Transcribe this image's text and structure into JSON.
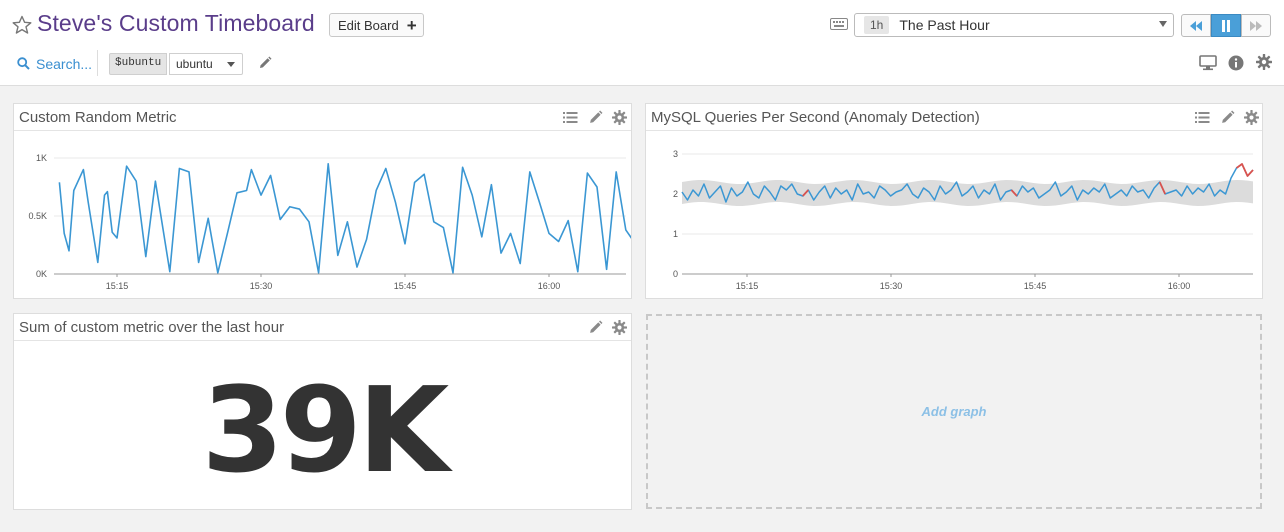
{
  "header": {
    "title": "Steve's Custom Timeboard",
    "edit_board_label": "Edit Board",
    "time_badge": "1h",
    "time_label": "The Past Hour"
  },
  "toolbar": {
    "search_placeholder": "Search...",
    "template_variable_name": "$ubuntu",
    "template_variable_value": "ubuntu"
  },
  "icons": [
    "star-icon",
    "plus-icon",
    "keyboard-icon",
    "rewind-icon",
    "pause-icon",
    "fast-forward-icon",
    "search-icon",
    "chevron-down-icon",
    "pencil-icon",
    "monitor-icon",
    "info-icon",
    "gear-icon",
    "list-icon"
  ],
  "colors": {
    "accent": "#4a9fd8",
    "title": "#5a3d8a",
    "series": "#3b97d3",
    "anomaly": "#d9534f",
    "band": "#dcdcdc"
  },
  "widgets": {
    "random": {
      "title": "Custom Random Metric"
    },
    "mysql": {
      "title": "MySQL Queries Per Second (Anomaly Detection)"
    },
    "sum": {
      "title": "Sum of custom metric over the last hour",
      "value": "39K"
    },
    "add_graph_label": "Add graph"
  },
  "chart_data": [
    {
      "type": "line",
      "xticks": [
        "15:15",
        "15:30",
        "15:45",
        "16:00"
      ],
      "yticks": [
        "0K",
        "0.5K",
        "1K"
      ],
      "ylim": [
        0,
        1
      ],
      "grid": true,
      "x_minutes_from_first_tick": [
        -6,
        -5.5,
        -5,
        -4.5,
        -3.5,
        -3,
        -2,
        -1.3,
        -1,
        -0.5,
        0,
        1,
        2,
        3,
        4,
        5.5,
        6.5,
        7.5,
        8.5,
        9.5,
        10.5,
        11.5,
        12.5,
        13.5,
        14,
        15,
        16,
        17,
        18,
        19,
        20,
        21,
        22,
        23,
        24,
        25,
        26,
        27,
        28,
        29,
        30,
        31,
        32,
        33,
        34,
        35,
        36,
        37,
        38,
        39,
        40,
        41,
        42,
        43,
        44,
        45,
        46,
        47,
        48,
        49,
        50,
        51,
        52,
        53,
        54,
        55
      ],
      "values": [
        0.79,
        0.35,
        0.2,
        0.72,
        0.9,
        0.62,
        0.1,
        0.68,
        0.71,
        0.36,
        0.31,
        0.93,
        0.8,
        0.15,
        0.8,
        0.02,
        0.91,
        0.88,
        0.1,
        0.48,
        0.01,
        0.35,
        0.7,
        0.72,
        0.9,
        0.68,
        0.85,
        0.47,
        0.58,
        0.56,
        0.45,
        0.01,
        0.95,
        0.16,
        0.45,
        0.06,
        0.3,
        0.72,
        0.91,
        0.62,
        0.26,
        0.79,
        0.86,
        0.45,
        0.4,
        0.01,
        0.92,
        0.68,
        0.32,
        0.77,
        0.18,
        0.35,
        0.09,
        0.88,
        0.62,
        0.35,
        0.28,
        0.46,
        0.02,
        0.87,
        0.75,
        0.04,
        0.88,
        0.38,
        0.26,
        0.95
      ]
    },
    {
      "type": "line",
      "xticks": [
        "15:15",
        "15:30",
        "15:45",
        "16:00"
      ],
      "yticks": [
        "0",
        "1",
        "2",
        "3"
      ],
      "ylim": [
        0,
        3
      ],
      "grid": true,
      "band_range": [
        1.75,
        2.3
      ],
      "series_values": [
        2.05,
        1.85,
        2.1,
        1.95,
        2.25,
        1.9,
        2.05,
        2.2,
        1.8,
        2.15,
        1.95,
        2.05,
        2.3,
        2.0,
        1.9,
        2.2,
        2.05,
        1.85,
        2.2,
        2.1,
        2.25,
        2.0,
        1.95,
        2.1,
        1.85,
        2.05,
        2.2,
        1.9,
        2.15,
        2.0,
        2.1,
        1.85,
        2.25,
        2.0,
        2.05,
        1.9,
        2.2,
        2.1,
        1.95,
        2.05,
        2.1,
        2.25,
        2.0,
        1.9,
        2.15,
        2.05,
        1.85,
        2.2,
        2.0,
        2.1,
        2.3,
        1.95,
        2.05,
        2.2,
        1.9,
        2.1,
        2.0,
        2.25,
        1.85,
        2.05,
        2.1,
        1.95,
        2.2,
        2.05,
        2.15,
        1.9,
        2.0,
        2.1,
        2.3,
        1.95,
        2.05,
        2.2,
        1.85,
        2.1,
        2.0,
        2.15,
        2.05,
        2.25,
        1.9,
        2.0,
        2.1,
        1.95,
        2.2,
        2.05,
        2.1,
        1.9,
        2.15,
        2.3,
        2.0,
        2.05,
        2.1,
        1.95,
        2.2,
        2.0,
        2.15,
        2.05,
        2.25,
        1.95,
        2.1,
        2.0,
        2.4,
        2.65,
        2.75,
        2.45,
        2.6
      ],
      "anomaly_indices": [
        22,
        23,
        60,
        61,
        87,
        88,
        101,
        102,
        103,
        104
      ]
    }
  ]
}
